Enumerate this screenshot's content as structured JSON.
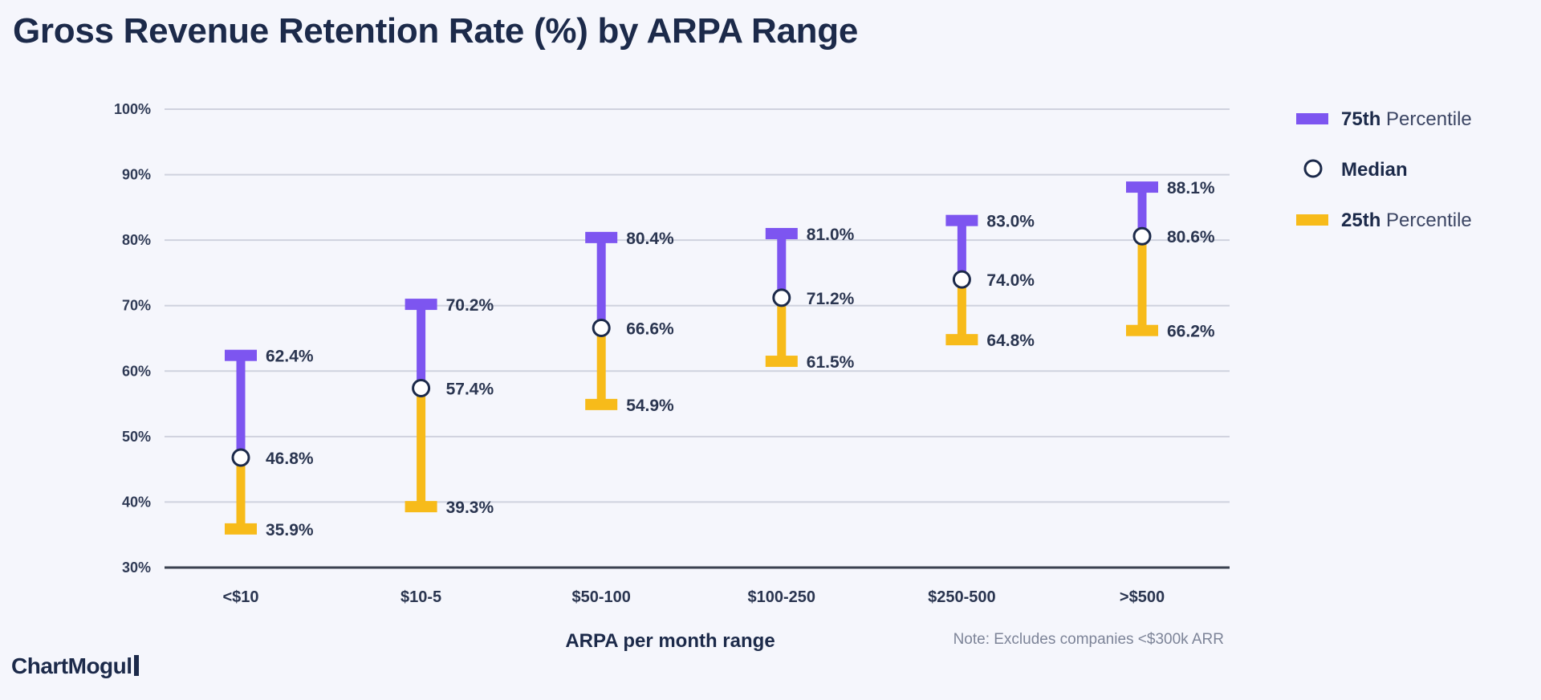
{
  "colors": {
    "p75": "#7d55f0",
    "p25": "#f7bb1a",
    "median_fill": "#ffffff",
    "median_stroke": "#1c2a4a",
    "grid": "#cfd2de",
    "text": "#1c2a4a"
  },
  "legend": {
    "p75_bold": "75th",
    "p75_rest": "Percentile",
    "median": "Median",
    "p25_bold": "25th",
    "p25_rest": "Percentile"
  },
  "note": "Note: Excludes companies <$300k ARR",
  "brand": "ChartMogul",
  "chart_data": {
    "type": "range",
    "title": "Gross Revenue Retention Rate (%) by ARPA Range",
    "xlabel": "ARPA per month range",
    "ylabel": "",
    "ylim": [
      30,
      100
    ],
    "y_ticks": [
      30,
      40,
      50,
      60,
      70,
      80,
      90,
      100
    ],
    "y_tick_labels": [
      "30%",
      "40%",
      "50%",
      "60%",
      "70%",
      "80%",
      "90%",
      "100%"
    ],
    "grid": true,
    "legend_position": "top-right",
    "categories": [
      "<$10",
      "$10-5",
      "$50-100",
      "$100-250",
      "$250-500",
      ">$500"
    ],
    "series": [
      {
        "name": "75th Percentile",
        "values": [
          62.4,
          70.2,
          80.4,
          81.0,
          83.0,
          88.1
        ],
        "labels": [
          "62.4%",
          "70.2%",
          "80.4%",
          "81.0%",
          "83.0%",
          "88.1%"
        ]
      },
      {
        "name": "Median",
        "values": [
          46.8,
          57.4,
          66.6,
          71.2,
          74.0,
          80.6
        ],
        "labels": [
          "46.8%",
          "57.4%",
          "66.6%",
          "71.2%",
          "74.0%",
          "80.6%"
        ]
      },
      {
        "name": "25th Percentile",
        "values": [
          35.9,
          39.3,
          54.9,
          61.5,
          64.8,
          66.2
        ],
        "labels": [
          "35.9%",
          "39.3%",
          "54.9%",
          "61.5%",
          "64.8%",
          "66.2%"
        ]
      }
    ]
  }
}
